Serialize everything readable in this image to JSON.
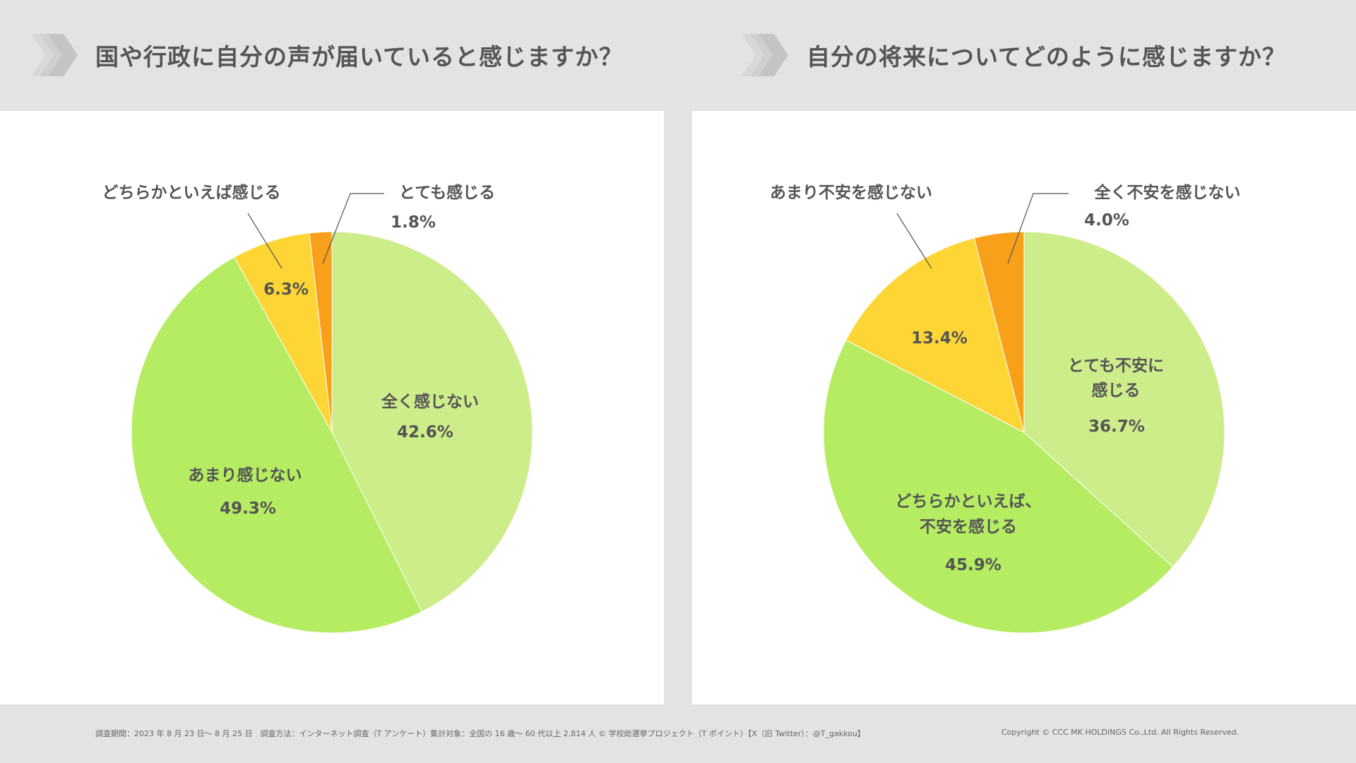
{
  "colors": {
    "light_green": "#cdec8a",
    "green": "#b5ec62",
    "yellow": "#fdd535",
    "orange": "#f9a01b",
    "text": "#555555",
    "background": "#e3e3e3"
  },
  "icons": {
    "title_marker": "chevron-right-icon"
  },
  "chart_data": [
    {
      "type": "pie",
      "title": "国や行政に自分の声が届いていると感じますか？",
      "slices": [
        {
          "label": "全く感じない",
          "value": 42.6,
          "display": "42.6%",
          "color": "#cdec8a"
        },
        {
          "label": "あまり感じない",
          "value": 49.3,
          "display": "49.3%",
          "color": "#b5ec62"
        },
        {
          "label": "どちらかといえば感じる",
          "value": 6.3,
          "display": "6.3%",
          "color": "#fdd535"
        },
        {
          "label": "とても感じる",
          "value": 1.8,
          "display": "1.8%",
          "color": "#f9a01b"
        }
      ]
    },
    {
      "type": "pie",
      "title": "自分の将来についてどのように感じますか？",
      "slices": [
        {
          "label": "とても不安に感じる",
          "label_lines": [
            "とても不安に",
            "感じる"
          ],
          "value": 36.7,
          "display": "36.7%",
          "color": "#cdec8a"
        },
        {
          "label": "どちらかといえば、不安を感じる",
          "label_lines": [
            "どちらかといえば、",
            "不安を感じる"
          ],
          "value": 45.9,
          "display": "45.9%",
          "color": "#b5ec62"
        },
        {
          "label": "あまり不安を感じない",
          "value": 13.4,
          "display": "13.4%",
          "color": "#fdd535"
        },
        {
          "label": "全く不安を感じない",
          "value": 4.0,
          "display": "4.0%",
          "color": "#f9a01b"
        }
      ]
    }
  ],
  "footer": {
    "survey_info": "調査期間：2023 年 8 月 23 日～ 8 月 25 日　調査方法：インターネット調査（T アンケート）集計対象：全国の 16 歳～ 60 代以上 2,814 人 © 学校総選挙プロジェクト（T ポイント）【X（旧 Twitter）：@T_gakkou】",
    "copyright": "Copyright © CCC MK HOLDINGS Co.,Ltd. All Rights Reserved."
  }
}
